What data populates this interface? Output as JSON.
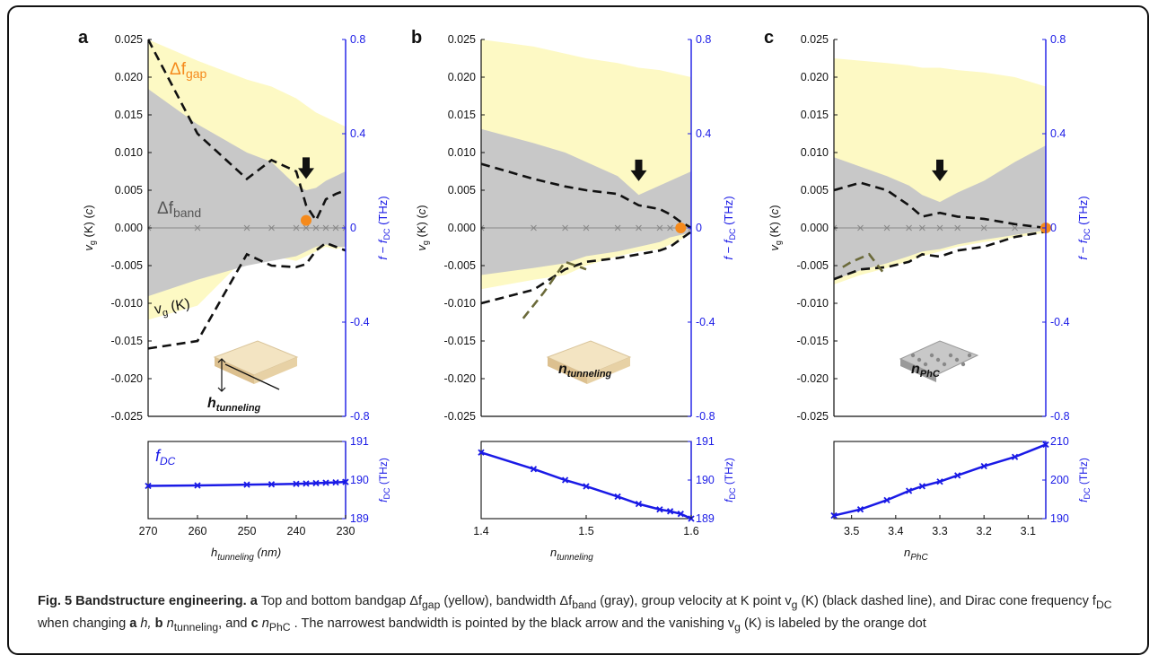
{
  "colors": {
    "gap": "#fdf9c4",
    "band": "#c8c8c8",
    "vg": "#111111",
    "fdc": "#1a1ae6",
    "dot": "#f58a1c",
    "axis_right": "#1a1ae6"
  },
  "chart_data": [
    {
      "type": "area",
      "panel": "a",
      "left_ylabel": "vg (K) (c)",
      "right_ylabel": "f − fDC (THz)",
      "ylim_left": [
        -0.025,
        0.025
      ],
      "ylim_right": [
        -0.8,
        0.8
      ],
      "left_ticks": [
        "0.025",
        "0.020",
        "0.015",
        "0.010",
        "0.005",
        "0.000",
        "-0.005",
        "-0.010",
        "-0.015",
        "-0.020",
        "-0.025"
      ],
      "right_ticks": [
        "0.8",
        "0.4",
        "0",
        "-0.4",
        "-0.8"
      ],
      "x": [
        270,
        260,
        250,
        245,
        240,
        238,
        236,
        234,
        232,
        230
      ],
      "xlim": [
        270,
        230
      ],
      "gap_top": [
        0.8,
        0.71,
        0.63,
        0.6,
        0.55,
        0.52,
        0.49,
        0.47,
        0.45,
        0.43
      ],
      "gap_bottom": [
        -0.39,
        -0.33,
        -0.12,
        -0.12,
        -0.14,
        -0.12,
        -0.1,
        -0.08,
        -0.09,
        -0.08
      ],
      "band_top": [
        0.59,
        0.44,
        0.32,
        0.28,
        0.18,
        0.16,
        0.17,
        0.2,
        0.22,
        0.24
      ],
      "band_bottom": [
        -0.29,
        -0.22,
        -0.16,
        -0.14,
        -0.12,
        -0.1,
        -0.08,
        -0.07,
        -0.08,
        -0.08
      ],
      "vg_top": [
        0.025,
        0.0125,
        0.0065,
        0.009,
        0.0075,
        0.003,
        0.001,
        0.0038,
        0.0045,
        0.005
      ],
      "vg_bottom": [
        -0.016,
        -0.015,
        -0.0035,
        -0.005,
        -0.0052,
        -0.0048,
        -0.003,
        -0.002,
        -0.0025,
        -0.003
      ],
      "dot": {
        "x": 238,
        "y": 0.001
      },
      "arrow_x": 238,
      "arrow_y": 0.0065,
      "labels": {
        "dgap": "Δf",
        "dgap_sub": "gap",
        "dband": "Δf",
        "dband_sub": "band",
        "vgk_main": "v",
        "vgk_sub": "g",
        "vgk_tail": " (K)"
      },
      "inset_label": "h",
      "inset_sub": "tunneling",
      "bottom": {
        "y": [
          189.85,
          189.86,
          189.88,
          189.89,
          189.9,
          189.91,
          189.92,
          189.93,
          189.94,
          189.95
        ],
        "ylim": [
          189,
          191
        ],
        "yticks": [
          "191",
          "190",
          "189"
        ],
        "ylabel": "fDC (THz)",
        "xticks": [
          "270",
          "260",
          "250",
          "240",
          "230"
        ],
        "xlabel_main": "h",
        "xlabel_sub": "tunneling",
        "xlabel_unit": " (nm)",
        "label": "f",
        "label_sub": "DC"
      }
    },
    {
      "type": "area",
      "panel": "b",
      "left_ylabel": "vg (K) (c)",
      "right_ylabel": "f − fDC (THz)",
      "ylim_left": [
        -0.025,
        0.025
      ],
      "ylim_right": [
        -0.8,
        0.8
      ],
      "left_ticks": [
        "0.025",
        "0.020",
        "0.015",
        "0.010",
        "0.005",
        "0.000",
        "-0.005",
        "-0.010",
        "-0.015",
        "-0.020",
        "-0.025"
      ],
      "right_ticks": [
        "0.8",
        "0.4",
        "0",
        "-0.4",
        "-0.8"
      ],
      "x": [
        1.4,
        1.45,
        1.48,
        1.5,
        1.53,
        1.55,
        1.57,
        1.58,
        1.59,
        1.6
      ],
      "xlim": [
        1.4,
        1.6
      ],
      "gap_top": [
        0.8,
        0.77,
        0.74,
        0.72,
        0.7,
        0.68,
        0.67,
        0.66,
        0.65,
        0.64
      ],
      "gap_bottom": [
        -0.26,
        -0.22,
        -0.2,
        -0.16,
        -0.12,
        -0.1,
        -0.09,
        -0.07,
        -0.05,
        -0.02
      ],
      "band_top": [
        0.42,
        0.36,
        0.32,
        0.28,
        0.22,
        0.14,
        0.18,
        0.2,
        0.22,
        0.24
      ],
      "band_bottom": [
        -0.2,
        -0.17,
        -0.15,
        -0.12,
        -0.1,
        -0.08,
        -0.06,
        -0.04,
        -0.03,
        -0.02
      ],
      "vg_top": [
        0.0085,
        0.0065,
        0.0055,
        0.005,
        0.0045,
        0.003,
        0.0025,
        0.0018,
        0.0008,
        0.0
      ],
      "vg_bottom": [
        -0.01,
        -0.0082,
        -0.0055,
        -0.0045,
        -0.004,
        -0.0035,
        -0.003,
        -0.0025,
        -0.0015,
        -0.0005
      ],
      "gap_lower_dash": [
        [
          1.44,
          -0.012
        ],
        [
          1.46,
          -0.0085
        ],
        [
          1.48,
          -0.0045
        ],
        [
          1.5,
          -0.0055
        ]
      ],
      "dot": {
        "x": 1.59,
        "y": 0.0
      },
      "arrow_x": 1.55,
      "arrow_y": 0.0062,
      "inset_label": "n",
      "inset_sub": "tunneling",
      "bottom": {
        "y": [
          190.7,
          190.25,
          189.95,
          189.78,
          189.5,
          189.3,
          189.15,
          189.1,
          189.03,
          188.9
        ],
        "ylim": [
          188.9,
          191
        ],
        "yticks": [
          "191",
          "190",
          "189"
        ],
        "ylabel": "fDC (THz)",
        "xticks": [
          "1.4",
          "1.5",
          "1.6"
        ],
        "xlabel_main": "n",
        "xlabel_sub": "tunneling",
        "xlabel_unit": ""
      }
    },
    {
      "type": "area",
      "panel": "c",
      "left_ylabel": "vg (K) (c)",
      "right_ylabel": "f − fDC (THz)",
      "ylim_left": [
        -0.025,
        0.025
      ],
      "ylim_right": [
        -0.8,
        0.8
      ],
      "left_ticks": [
        "0.025",
        "0.020",
        "0.015",
        "0.010",
        "0.005",
        "0.000",
        "-0.005",
        "-0.010",
        "-0.015",
        "-0.020",
        "-0.025"
      ],
      "right_ticks": [
        "0.8",
        "0.4",
        "0",
        "-0.4",
        "-0.8"
      ],
      "x": [
        3.54,
        3.48,
        3.42,
        3.37,
        3.34,
        3.3,
        3.26,
        3.2,
        3.13,
        3.06
      ],
      "xlim": [
        3.54,
        3.06
      ],
      "gap_top": [
        0.72,
        0.71,
        0.7,
        0.69,
        0.68,
        0.68,
        0.67,
        0.66,
        0.64,
        0.6
      ],
      "gap_bottom": [
        -0.24,
        -0.2,
        -0.17,
        -0.14,
        -0.12,
        -0.1,
        -0.08,
        -0.06,
        -0.04,
        -0.02
      ],
      "band_top": [
        0.3,
        0.26,
        0.22,
        0.18,
        0.14,
        0.11,
        0.15,
        0.2,
        0.28,
        0.35
      ],
      "band_bottom": [
        -0.22,
        -0.18,
        -0.15,
        -0.12,
        -0.1,
        -0.09,
        -0.07,
        -0.05,
        -0.03,
        -0.01
      ],
      "vg_top": [
        0.005,
        0.006,
        0.005,
        0.003,
        0.0015,
        0.002,
        0.0015,
        0.0012,
        0.0005,
        0.0
      ],
      "vg_bottom": [
        -0.0068,
        -0.0055,
        -0.0052,
        -0.0045,
        -0.0035,
        -0.0038,
        -0.003,
        -0.0025,
        -0.0012,
        -0.0005
      ],
      "gap_lower_dash": [
        [
          3.52,
          -0.0052
        ],
        [
          3.5,
          -0.0045
        ],
        [
          3.46,
          -0.0035
        ],
        [
          3.43,
          -0.0058
        ]
      ],
      "dot": {
        "x": 3.06,
        "y": 0.0
      },
      "arrow_x": 3.3,
      "arrow_y": 0.0062,
      "inset_label": "n",
      "inset_sub": "PhC",
      "bottom": {
        "y": [
          188,
          190,
          193,
          196,
          197.5,
          199,
          201,
          204,
          207,
          211
        ],
        "ylim": [
          187,
          212
        ],
        "yticks": [
          "210",
          "200",
          "190"
        ],
        "ylabel": "fDC (THz)",
        "xticks": [
          "3.5",
          "3.4",
          "3.3",
          "3.2",
          "3.1"
        ],
        "xlabel_main": "n",
        "xlabel_sub": "PhC",
        "xlabel_unit": ""
      }
    }
  ],
  "panel_letters": [
    "a",
    "b",
    "c"
  ],
  "caption": {
    "title": "Fig. 5 Bandstructure engineering.",
    "a_bold": "a",
    "line1": " Top and bottom bandgap Δf",
    "gap_sub": "gap",
    "line1b": " (yellow), bandwidth Δf",
    "band_sub": "band",
    "line1c": " (gray), group velocity at K point v",
    "vg_sub": "g",
    "line1d": " (K) (black",
    "line2a": "dashed line), and Dirac cone frequency f",
    "dc_sub": "DC",
    "line2b": " when changing ",
    "a2": "a",
    "h": " h, ",
    "b": "b",
    "ntun": " n",
    "ntun_sub": "tunneling",
    "and": ", and ",
    "c": "c",
    "nphc": " n",
    "nphc_sub": "PhC",
    "line2c": " . The narrowest bandwidth is pointed by the black arrow and",
    "line3a": "the vanishing v",
    "line3b": " (K) is labeled by the orange dot"
  }
}
